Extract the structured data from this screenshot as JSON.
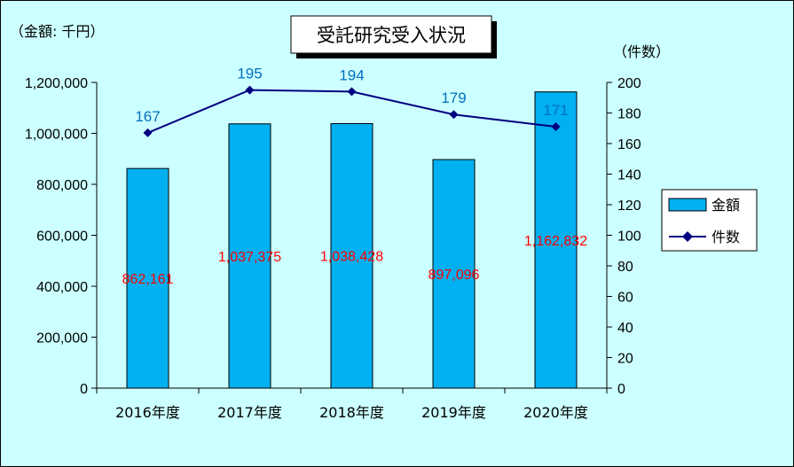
{
  "chart_data": {
    "type": "bar",
    "title": "受託研究受入状況",
    "categories": [
      "2016年度",
      "2017年度",
      "2018年度",
      "2019年度",
      "2020年度"
    ],
    "series": [
      {
        "name": "金額",
        "kind": "bar",
        "axis": "left",
        "color": "#00b0f0",
        "values": [
          862161,
          1037375,
          1038428,
          897096,
          1162832
        ],
        "labels": [
          "862,161",
          "1,037,375",
          "1,038,428",
          "897,096",
          "1,162,832"
        ]
      },
      {
        "name": "件数",
        "kind": "line",
        "axis": "right",
        "color": "#000080",
        "marker": "diamond",
        "values": [
          167,
          195,
          194,
          179,
          171
        ],
        "labels": [
          "167",
          "195",
          "194",
          "179",
          "171"
        ]
      }
    ],
    "y_left": {
      "unit_label": "（金額: 千円）",
      "range": [
        0,
        1200000
      ],
      "ticks": [
        0,
        200000,
        400000,
        600000,
        800000,
        1000000,
        1200000
      ],
      "tick_labels": [
        "0",
        "200,000",
        "400,000",
        "600,000",
        "800,000",
        "1,000,000",
        "1,200,000"
      ]
    },
    "y_right": {
      "unit_label": "（件数）",
      "range": [
        0,
        200
      ],
      "ticks": [
        0,
        20,
        40,
        60,
        80,
        100,
        120,
        140,
        160,
        180,
        200
      ],
      "tick_labels": [
        "0",
        "20",
        "40",
        "60",
        "80",
        "100",
        "120",
        "140",
        "160",
        "180",
        "200"
      ]
    },
    "grid": false,
    "legend": "right"
  }
}
